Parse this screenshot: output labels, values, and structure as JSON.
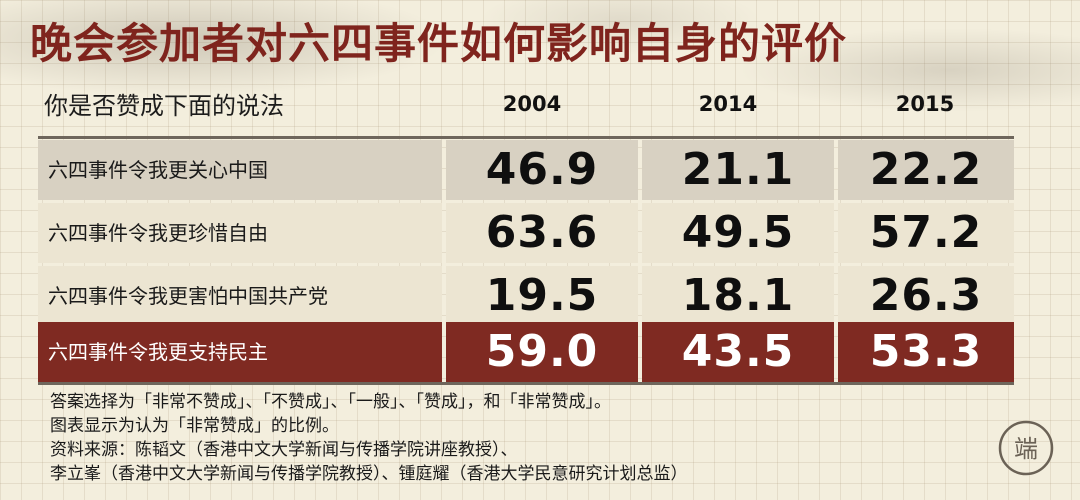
{
  "title": "晚会参加者对六四事件如何影响自身的评价",
  "subtitle": "你是否赞成下面的说法",
  "chart_data": {
    "type": "table",
    "title": "晚会参加者对六四事件如何影响自身的评价",
    "columns": [
      "2004",
      "2014",
      "2015"
    ],
    "rows": [
      {
        "label": "六四事件令我更关心中国",
        "values": [
          "46.9",
          "21.1",
          "22.2"
        ]
      },
      {
        "label": "六四事件令我更珍惜自由",
        "values": [
          "63.6",
          "49.5",
          "57.2"
        ]
      },
      {
        "label": "六四事件令我更害怕中国共产党",
        "values": [
          "19.5",
          "18.1",
          "26.3"
        ]
      },
      {
        "label": "六四事件令我更支持民主",
        "values": [
          "59.0",
          "43.5",
          "53.3"
        ]
      }
    ],
    "highlight_row": 3
  },
  "notes": [
    "答案选择为「非常不赞成」、「不赞成」、「一般」、「赞成」，和「非常赞成」。",
    "图表显示为认为「非常赞成」的比例。",
    "资料来源：陈韬文（香港中文大学新闻与传播学院讲座教授）、",
    "李立峯（香港中文大学新闻与传播学院教授）、锺庭耀（香港大学民意研究计划总监）"
  ],
  "logo_text": "端",
  "colors": {
    "accent": "#7f241d",
    "highlight_row": "#7f2a22",
    "row_bg": "#ece5d2",
    "first_row_bg": "#d8d1c2"
  }
}
